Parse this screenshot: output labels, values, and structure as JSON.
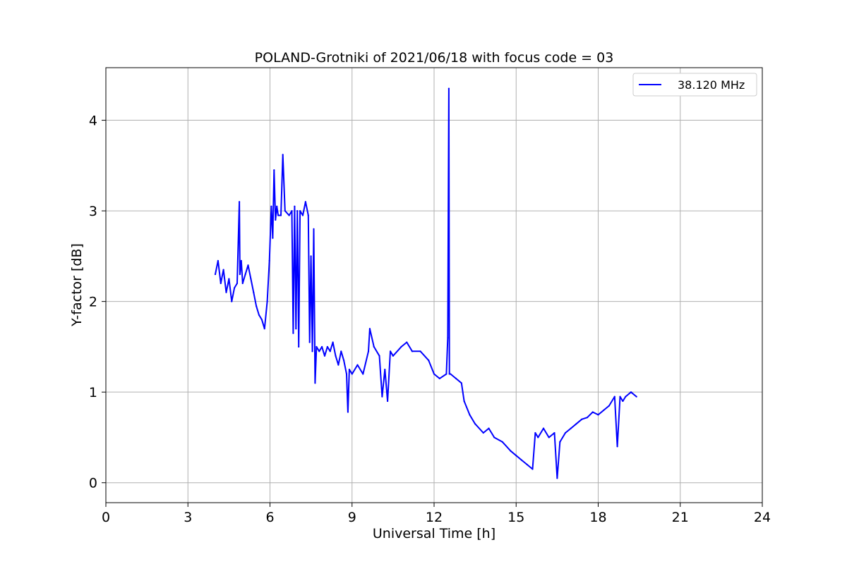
{
  "chart_data": {
    "type": "line",
    "title": "POLAND-Grotniki of 2021/06/18 with focus code = 03",
    "xlabel": "Universal Time [h]",
    "ylabel": "Y-factor [dB]",
    "xlim": [
      0,
      24
    ],
    "ylim": [
      -0.22,
      4.58
    ],
    "xticks": [
      0,
      3,
      6,
      9,
      12,
      15,
      18,
      21,
      24
    ],
    "yticks": [
      0,
      1,
      2,
      3,
      4
    ],
    "grid": true,
    "legend_position": "top-right",
    "series": [
      {
        "name": "38.120 MHz",
        "color": "#0000ff",
        "x": [
          4.0,
          4.1,
          4.2,
          4.3,
          4.4,
          4.5,
          4.6,
          4.7,
          4.8,
          4.88,
          4.9,
          4.95,
          5.0,
          5.1,
          5.2,
          5.3,
          5.4,
          5.5,
          5.6,
          5.7,
          5.8,
          5.9,
          5.98,
          6.05,
          6.1,
          6.15,
          6.2,
          6.25,
          6.3,
          6.4,
          6.47,
          6.55,
          6.7,
          6.8,
          6.85,
          6.9,
          6.95,
          7.0,
          7.05,
          7.1,
          7.2,
          7.3,
          7.4,
          7.45,
          7.5,
          7.55,
          7.6,
          7.65,
          7.7,
          7.8,
          7.9,
          8.0,
          8.1,
          8.2,
          8.3,
          8.4,
          8.5,
          8.6,
          8.7,
          8.8,
          8.85,
          8.9,
          9.0,
          9.2,
          9.4,
          9.6,
          9.65,
          9.8,
          10.0,
          10.1,
          10.2,
          10.3,
          10.4,
          10.5,
          10.8,
          11.0,
          11.2,
          11.5,
          11.8,
          12.0,
          12.2,
          12.45,
          12.5,
          12.54,
          12.56,
          12.6,
          12.8,
          13.0,
          13.1,
          13.3,
          13.5,
          13.8,
          14.0,
          14.2,
          14.5,
          14.8,
          15.0,
          15.2,
          15.4,
          15.6,
          15.7,
          15.8,
          16.0,
          16.2,
          16.4,
          16.5,
          16.6,
          16.8,
          17.0,
          17.2,
          17.4,
          17.6,
          17.8,
          18.0,
          18.2,
          18.4,
          18.6,
          18.7,
          18.8,
          18.9,
          19.0,
          19.2,
          19.4
        ],
        "y": [
          2.3,
          2.45,
          2.2,
          2.35,
          2.1,
          2.25,
          2.0,
          2.15,
          2.2,
          3.1,
          2.3,
          2.45,
          2.2,
          2.3,
          2.4,
          2.25,
          2.1,
          1.95,
          1.85,
          1.8,
          1.7,
          2.0,
          2.45,
          3.05,
          2.7,
          3.45,
          2.9,
          3.05,
          2.95,
          2.95,
          3.62,
          3.0,
          2.95,
          3.0,
          1.65,
          3.05,
          1.7,
          3.0,
          1.5,
          3.0,
          2.95,
          3.1,
          2.95,
          1.55,
          2.5,
          1.45,
          2.8,
          1.1,
          1.5,
          1.45,
          1.5,
          1.4,
          1.5,
          1.45,
          1.55,
          1.4,
          1.3,
          1.45,
          1.35,
          1.2,
          0.78,
          1.25,
          1.2,
          1.3,
          1.2,
          1.45,
          1.7,
          1.5,
          1.4,
          0.95,
          1.25,
          0.9,
          1.45,
          1.4,
          1.5,
          1.55,
          1.45,
          1.45,
          1.35,
          1.2,
          1.15,
          1.2,
          1.6,
          4.35,
          1.2,
          1.2,
          1.15,
          1.1,
          0.9,
          0.75,
          0.65,
          0.55,
          0.6,
          0.5,
          0.45,
          0.35,
          0.3,
          0.25,
          0.2,
          0.15,
          0.55,
          0.5,
          0.6,
          0.5,
          0.55,
          0.05,
          0.45,
          0.55,
          0.6,
          0.65,
          0.7,
          0.72,
          0.78,
          0.75,
          0.8,
          0.85,
          0.95,
          0.4,
          0.95,
          0.9,
          0.95,
          1.0,
          0.95
        ]
      }
    ]
  }
}
